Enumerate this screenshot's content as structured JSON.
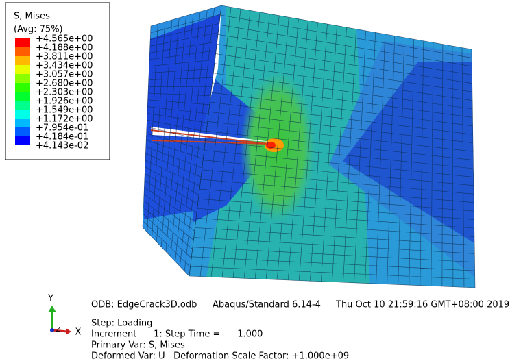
{
  "legend": {
    "title": "S, Mises",
    "subtitle": "(Avg: 75%)",
    "labels": [
      "+4.565e+00",
      "+4.188e+00",
      "+3.811e+00",
      "+3.434e+00",
      "+3.057e+00",
      "+2.680e+00",
      "+2.303e+00",
      "+1.926e+00",
      "+1.549e+00",
      "+1.172e+00",
      "+7.954e-01",
      "+4.184e-01",
      "+4.143e-02"
    ],
    "colors": [
      "#ff0000",
      "#ff5d00",
      "#ffb900",
      "#e8ff00",
      "#8bff00",
      "#2eff00",
      "#00ff2e",
      "#00ff8b",
      "#00ffe8",
      "#00b9ff",
      "#005dff",
      "#0000ff"
    ]
  },
  "triad": {
    "y": "Y",
    "z": "Z",
    "x": "X"
  },
  "info": {
    "odb": "ODB: EdgeCrack3D.odb",
    "solver": "Abaqus/Standard 6.14-4",
    "date": "Thu Oct 10 21:59:16 GMT+08:00 2019",
    "lines": [
      "Step: Loading",
      "Increment      1: Step Time =      1.000",
      "Primary Var: S, Mises",
      "Deformed Var: U   Deformation Scale Factor: +1.000e+09"
    ]
  }
}
